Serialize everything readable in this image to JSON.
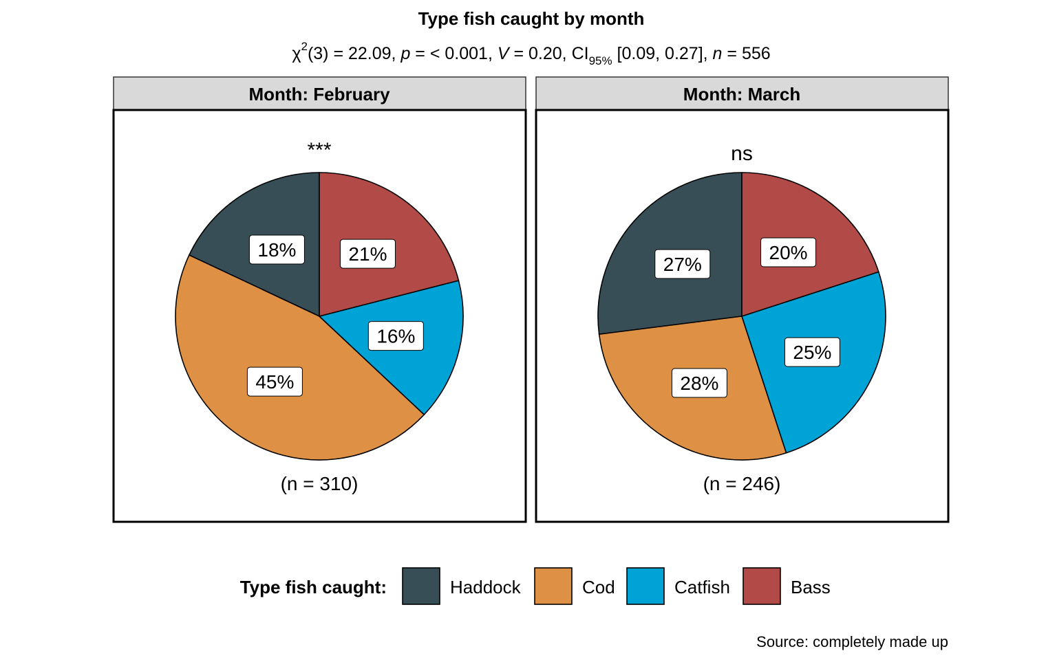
{
  "chart_data": {
    "type": "pie",
    "title": "Type fish caught by month",
    "subtitle": {
      "chi": "χ",
      "chi_sup": "2",
      "df_part": "(3) = 22.09, ",
      "p_label": "p",
      "p_part": " = < 0.001, ",
      "v_label": "V",
      "v_part": " = 0.20, CI",
      "ci_sub": "95%",
      "ci_part": " [0.09, 0.27], ",
      "n_label": "n",
      "n_part": " = 556"
    },
    "legend_title": "Type fish caught:",
    "legend_placement": "bottom",
    "categories": [
      "Haddock",
      "Cod",
      "Catfish",
      "Bass"
    ],
    "colors": {
      "Haddock": "#384E56",
      "Cod": "#DE9144",
      "Catfish": "#00A3D5",
      "Bass": "#B24A48"
    },
    "panels": [
      {
        "strip": "Month: February",
        "significance": "***",
        "n_label": "(n = 310)",
        "slices": [
          {
            "category": "Haddock",
            "value": 18,
            "label": "18%"
          },
          {
            "category": "Cod",
            "value": 45,
            "label": "45%"
          },
          {
            "category": "Catfish",
            "value": 16,
            "label": "16%"
          },
          {
            "category": "Bass",
            "value": 21,
            "label": "21%"
          }
        ]
      },
      {
        "strip": "Month: March",
        "significance": "ns",
        "n_label": "(n = 246)",
        "slices": [
          {
            "category": "Haddock",
            "value": 27,
            "label": "27%"
          },
          {
            "category": "Cod",
            "value": 28,
            "label": "28%"
          },
          {
            "category": "Catfish",
            "value": 25,
            "label": "25%"
          },
          {
            "category": "Bass",
            "value": 20,
            "label": "20%"
          }
        ]
      }
    ],
    "caption": "Source: completely made up"
  }
}
